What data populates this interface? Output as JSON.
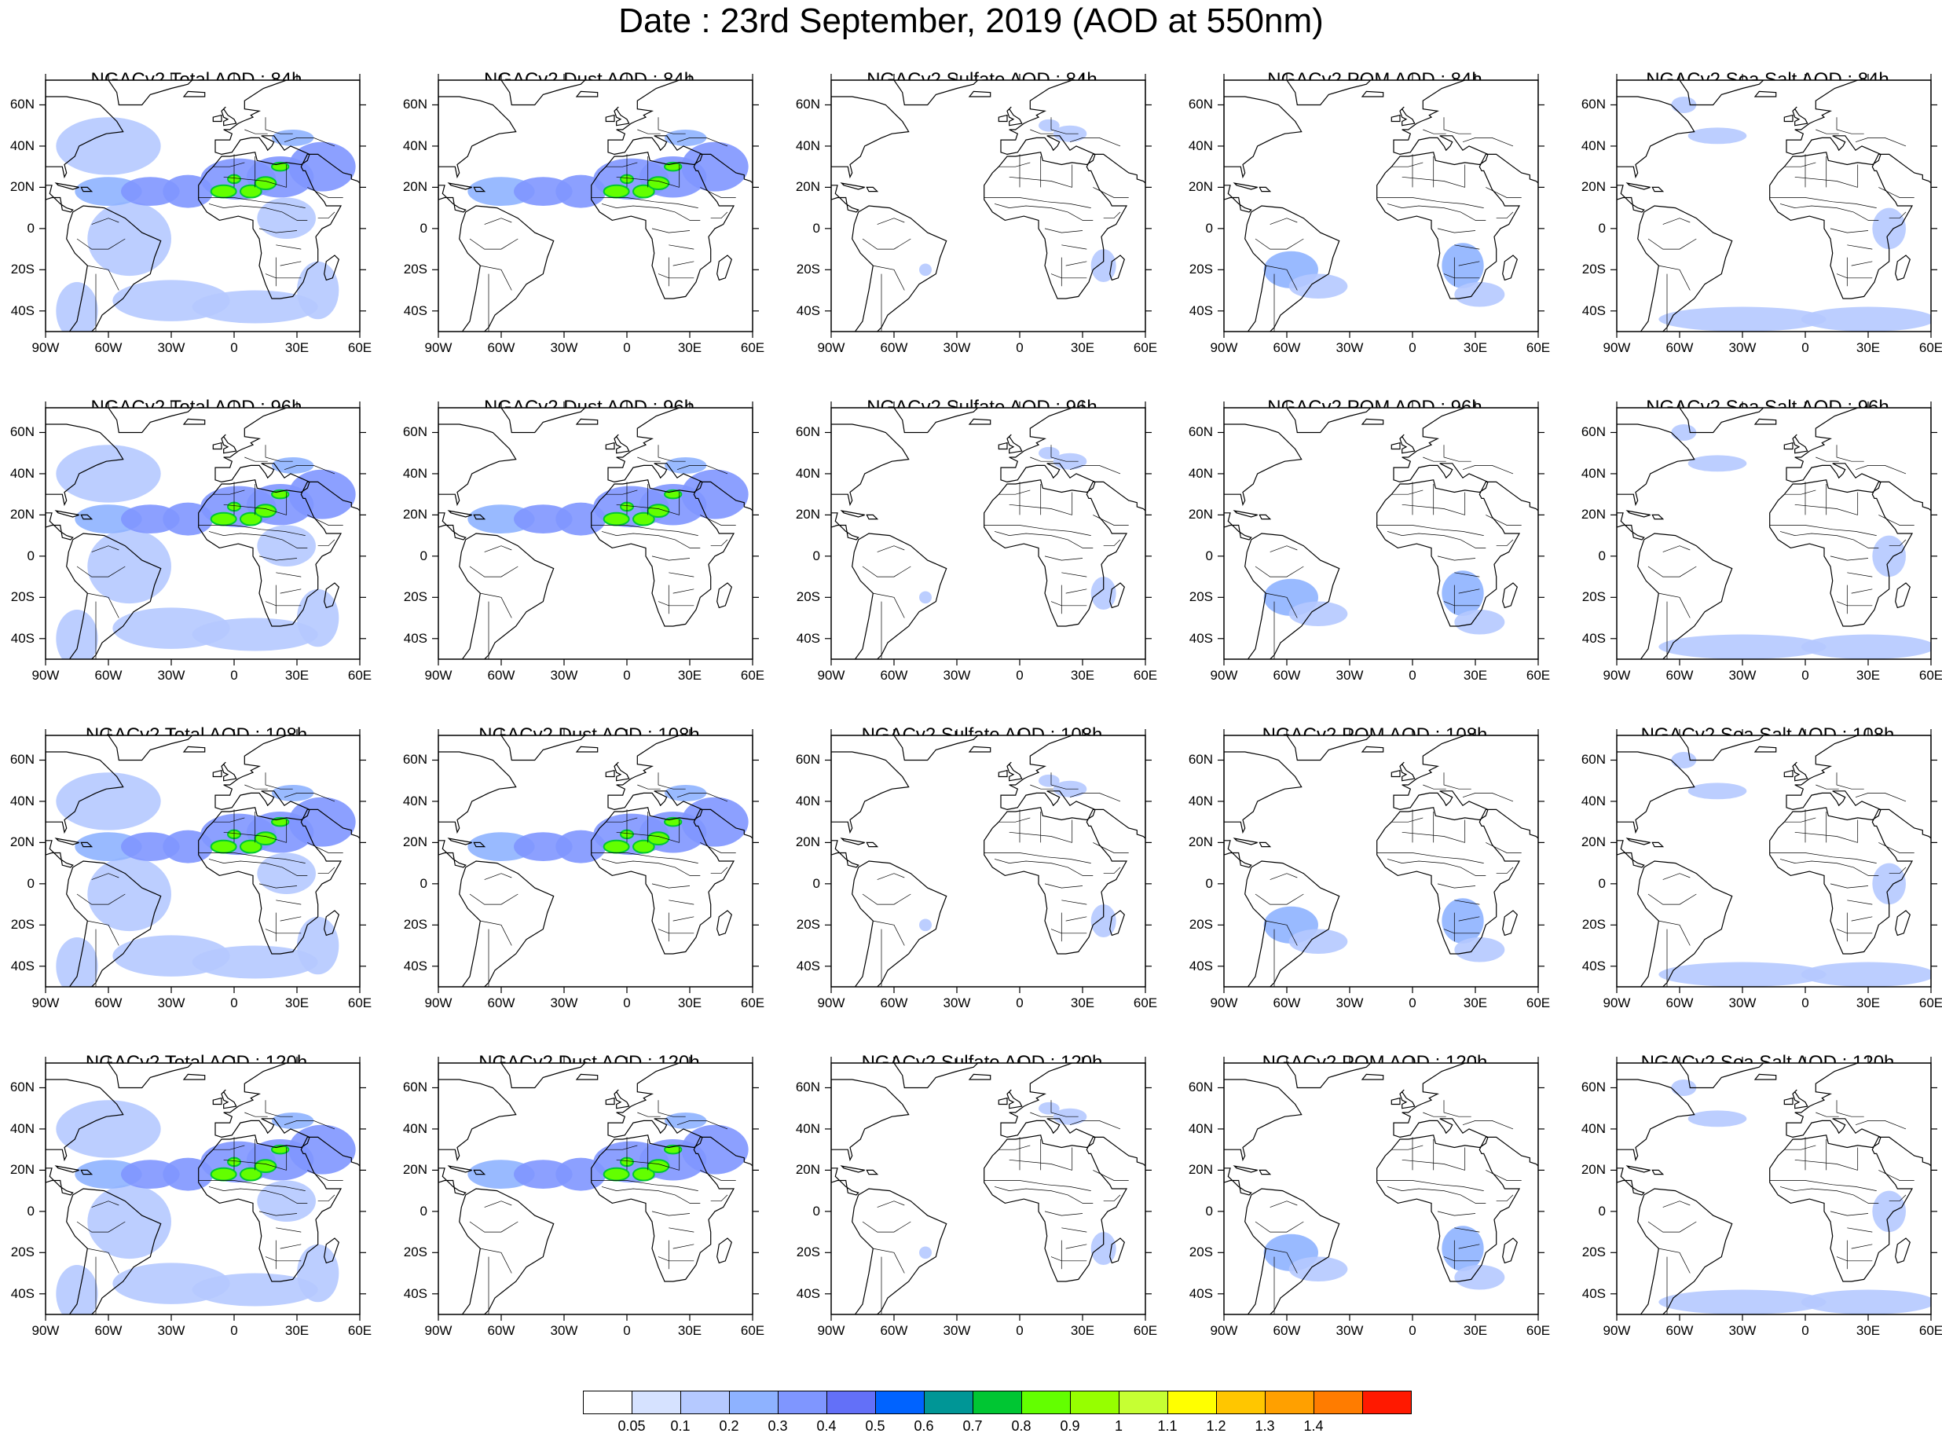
{
  "title": "Date : 23rd September, 2019 (AOD at 550nm)",
  "lat_labels": [
    "60N",
    "40N",
    "20N",
    "0",
    "20S",
    "40S"
  ],
  "lon_labels": [
    "90W",
    "60W",
    "30W",
    "0",
    "30E",
    "60E"
  ],
  "panels": [
    [
      "NGACv2 Total AOD : 84h",
      "NGACv2 Dust AOD : 84h",
      "NGACv2 Sulfate AOD : 84h",
      "NGACv2 POM AOD : 84h",
      "NGACv2 Sea Salt AOD : 84h"
    ],
    [
      "NGACv2 Total AOD : 96h",
      "NGACv2 Dust AOD : 96h",
      "NGACv2 Sulfate AOD : 96h",
      "NGACv2 POM AOD : 96h",
      "NGACv2 Sea Salt AOD : 96h"
    ],
    [
      "NGACv2 Total AOD : 108h",
      "NGACv2 Dust AOD : 108h",
      "NGACv2 Sulfate AOD : 108h",
      "NGACv2 POM AOD : 108h",
      "NGACv2 Sea Salt AOD : 108h"
    ],
    [
      "NGACv2 Total AOD : 120h",
      "NGACv2 Dust AOD : 120h",
      "NGACv2 Sulfate AOD : 120h",
      "NGACv2 POM AOD : 120h",
      "NGACv2 Sea Salt  AOD : 120h"
    ]
  ],
  "colorbar": {
    "labels": [
      "0.05",
      "0.1",
      "0.2",
      "0.3",
      "0.4",
      "0.5",
      "0.6",
      "0.7",
      "0.8",
      "0.9",
      "1",
      "1.1",
      "1.2",
      "1.3",
      "1.4"
    ],
    "colors": [
      "#ffffff",
      "#d6e2ff",
      "#b5c9ff",
      "#8eb2ff",
      "#7f96ff",
      "#6370f8",
      "#0063ff",
      "#009696",
      "#00c633",
      "#63ff00",
      "#96ff00",
      "#c6ff33",
      "#ffff00",
      "#ffc600",
      "#ffa000",
      "#ff7c00",
      "#ff1900"
    ]
  }
}
